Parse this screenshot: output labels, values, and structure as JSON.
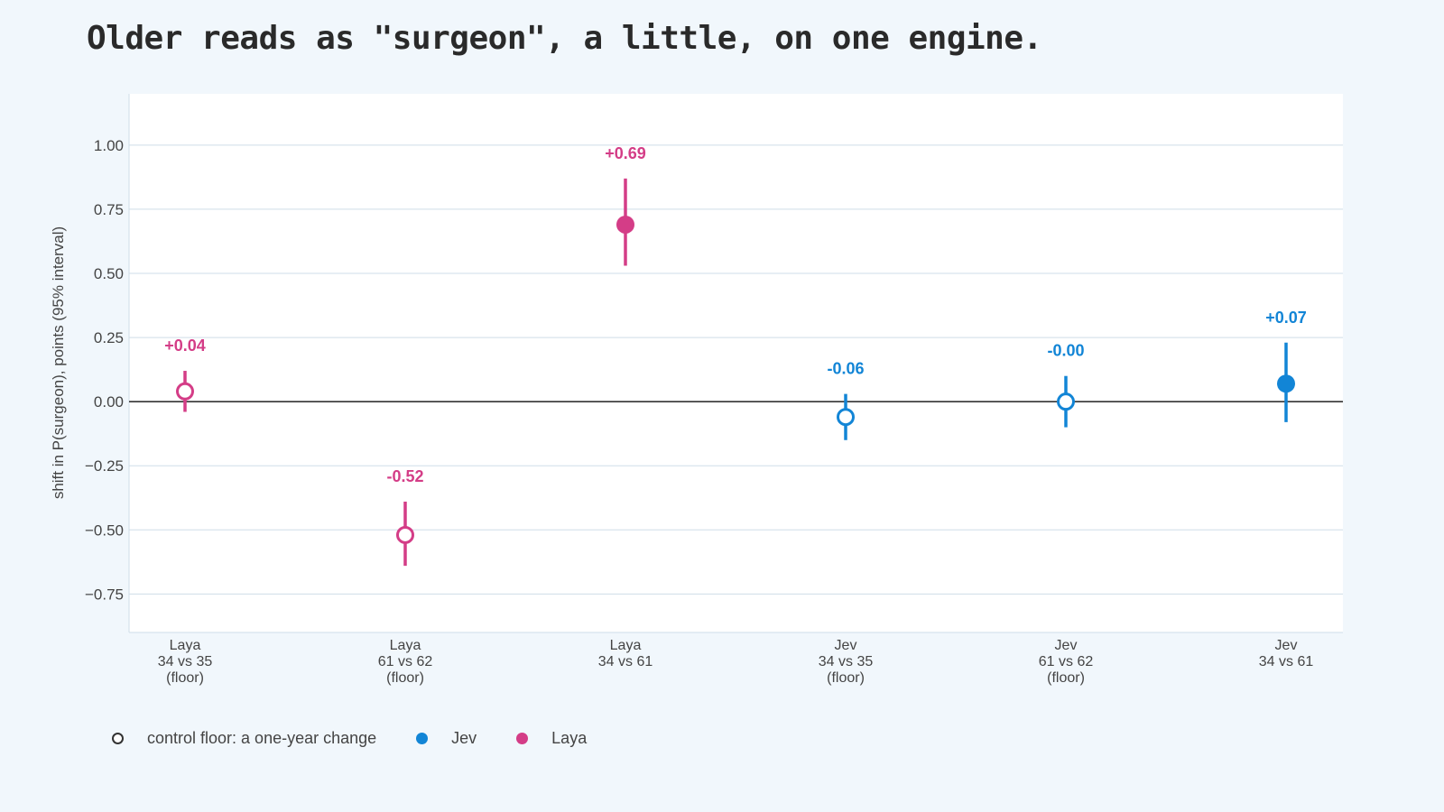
{
  "title": "Older reads as \"surgeon\", a little, on one engine.",
  "legend": [
    {
      "label": "control floor: a one-year change",
      "kind": "hollow",
      "color": "#333333"
    },
    {
      "label": "Jev",
      "kind": "filled",
      "color": "#1285d6"
    },
    {
      "label": "Laya",
      "kind": "filled",
      "color": "#d43d87"
    }
  ],
  "colors": {
    "Laya": "#d43d87",
    "Jev": "#1285d6",
    "zero_line": "#333333",
    "grid": "#cfdde8"
  },
  "chart_data": {
    "type": "scatter",
    "ylabel": "shift in P(surgeon), points (95% interval)",
    "ylim": [
      -0.9,
      1.2
    ],
    "yticks": [
      1.0,
      0.75,
      0.5,
      0.25,
      0.0,
      -0.25,
      -0.5,
      -0.75
    ],
    "ytick_labels": [
      "1.00",
      "0.75",
      "0.50",
      "0.25",
      "0.00",
      "−0.25",
      "−0.50",
      "−0.75"
    ],
    "grid": true,
    "zero_line": true,
    "points": [
      {
        "engine": "Laya",
        "category": [
          "Laya",
          "34 vs 35",
          "(floor)"
        ],
        "value": 0.04,
        "lower": -0.04,
        "upper": 0.12,
        "floor": true,
        "label": "+0.04"
      },
      {
        "engine": "Laya",
        "category": [
          "Laya",
          "61 vs 62",
          "(floor)"
        ],
        "value": -0.52,
        "lower": -0.64,
        "upper": -0.39,
        "floor": true,
        "label": "-0.52"
      },
      {
        "engine": "Laya",
        "category": [
          "Laya",
          "34 vs 61"
        ],
        "value": 0.69,
        "lower": 0.53,
        "upper": 0.87,
        "floor": false,
        "label": "+0.69"
      },
      {
        "engine": "Jev",
        "category": [
          "Jev",
          "34 vs 35",
          "(floor)"
        ],
        "value": -0.06,
        "lower": -0.15,
        "upper": 0.03,
        "floor": true,
        "label": "-0.06"
      },
      {
        "engine": "Jev",
        "category": [
          "Jev",
          "61 vs 62",
          "(floor)"
        ],
        "value": 0.0,
        "lower": -0.1,
        "upper": 0.1,
        "floor": true,
        "label": "-0.00"
      },
      {
        "engine": "Jev",
        "category": [
          "Jev",
          "34 vs 61"
        ],
        "value": 0.07,
        "lower": -0.08,
        "upper": 0.23,
        "floor": false,
        "label": "+0.07"
      }
    ]
  }
}
